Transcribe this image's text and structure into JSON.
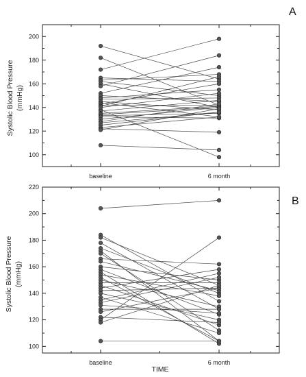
{
  "chart_data": [
    {
      "type": "line",
      "panel": "A",
      "ylabel": "Systolic Blood Pressure",
      "yunit": "(mmHg)",
      "xlabel": "",
      "categories": [
        "baseline",
        "6 month"
      ],
      "ylim": [
        90,
        210
      ],
      "yticks": [
        100,
        120,
        140,
        160,
        180,
        200
      ],
      "grid": false,
      "legend": "none",
      "pairs": [
        [
          192,
          164
        ],
        [
          182,
          142
        ],
        [
          172,
          198
        ],
        [
          165,
          162
        ],
        [
          163,
          168
        ],
        [
          162,
          150
        ],
        [
          160,
          140
        ],
        [
          158,
          184
        ],
        [
          152,
          174
        ],
        [
          150,
          145
        ],
        [
          148,
          155
        ],
        [
          147,
          148
        ],
        [
          145,
          138
        ],
        [
          144,
          132
        ],
        [
          143,
          160
        ],
        [
          142,
          142
        ],
        [
          141,
          166
        ],
        [
          140,
          152
        ],
        [
          138,
          98
        ],
        [
          137,
          146
        ],
        [
          135,
          141
        ],
        [
          134,
          140
        ],
        [
          133,
          135
        ],
        [
          132,
          131
        ],
        [
          130,
          140
        ],
        [
          128,
          143
        ],
        [
          127,
          136
        ],
        [
          125,
          136
        ],
        [
          123,
          132
        ],
        [
          122,
          119
        ],
        [
          121,
          139
        ],
        [
          108,
          104
        ]
      ]
    },
    {
      "type": "line",
      "panel": "B",
      "ylabel": "Systolic Blood Pressure",
      "yunit": "(mmHg)",
      "xlabel": "TIME",
      "categories": [
        "baseline",
        "6 month"
      ],
      "ylim": [
        95,
        220
      ],
      "yticks": [
        100,
        120,
        140,
        160,
        180,
        200,
        220
      ],
      "grid": false,
      "legend": "none",
      "pairs": [
        [
          204,
          210
        ],
        [
          184,
          134
        ],
        [
          182,
          146
        ],
        [
          178,
          128
        ],
        [
          174,
          140
        ],
        [
          172,
          104
        ],
        [
          170,
          112
        ],
        [
          166,
          162
        ],
        [
          164,
          142
        ],
        [
          160,
          150
        ],
        [
          158,
          124
        ],
        [
          156,
          102
        ],
        [
          154,
          138
        ],
        [
          152,
          104
        ],
        [
          150,
          130
        ],
        [
          148,
          148
        ],
        [
          146,
          116
        ],
        [
          144,
          158
        ],
        [
          142,
          144
        ],
        [
          140,
          120
        ],
        [
          137,
          110
        ],
        [
          135,
          155
        ],
        [
          133,
          152
        ],
        [
          131,
          125
        ],
        [
          128,
          128
        ],
        [
          126,
          144
        ],
        [
          122,
          118
        ],
        [
          120,
          182
        ],
        [
          118,
          146
        ],
        [
          104,
          104
        ]
      ]
    }
  ]
}
